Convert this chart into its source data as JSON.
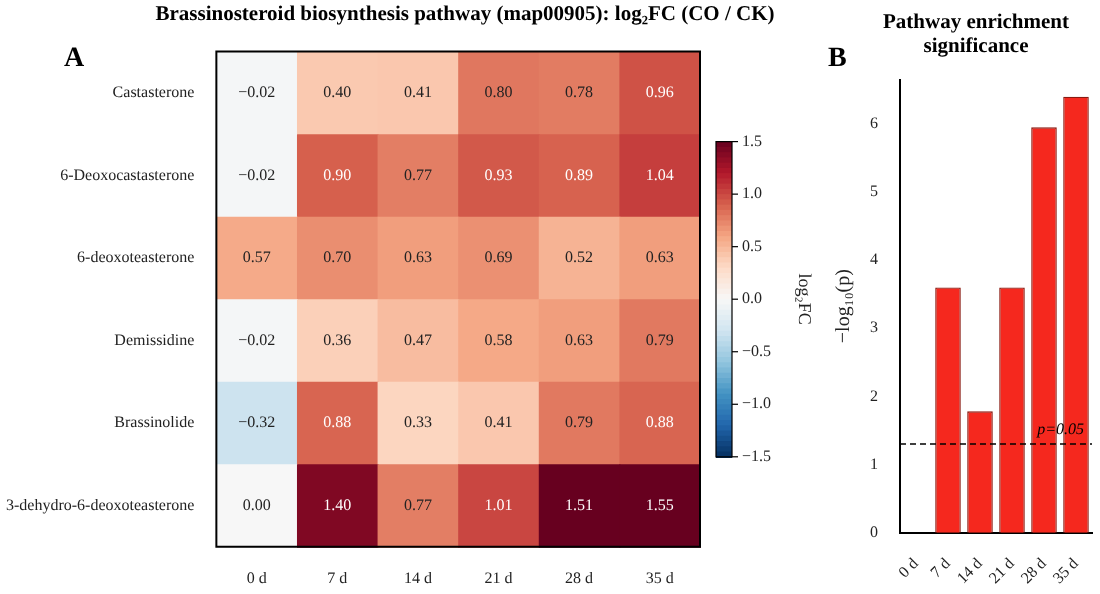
{
  "chart_data": [
    {
      "type": "heatmap",
      "title": "Brassinosteroid biosynthesis pathway (map00905): log₂FC (CO / CK)",
      "annotations": [
        "A"
      ],
      "clabel": "log₂FC",
      "categories": [
        "0 d",
        "7 d",
        "14 d",
        "21 d",
        "28 d",
        "35 d"
      ],
      "y_categories": [
        "Castasterone",
        "6-Deoxocastasterone",
        "6-deoxoteasterone",
        "Demissidine",
        "Brassinolide",
        "3-dehydro-6-deoxoteasterone"
      ],
      "cells": [
        [
          -0.02,
          0.4,
          0.41,
          0.8,
          0.78,
          0.96
        ],
        [
          -0.02,
          0.9,
          0.77,
          0.93,
          0.89,
          1.04
        ],
        [
          0.57,
          0.7,
          0.63,
          0.69,
          0.52,
          0.63
        ],
        [
          -0.02,
          0.36,
          0.47,
          0.58,
          0.63,
          0.79
        ],
        [
          -0.32,
          0.88,
          0.33,
          0.41,
          0.79,
          0.88
        ],
        [
          0.0,
          1.4,
          0.77,
          1.01,
          1.51,
          1.55
        ]
      ],
      "cell_labels": [
        [
          "−0.02",
          "0.40",
          "0.41",
          "0.80",
          "0.78",
          "0.96"
        ],
        [
          "−0.02",
          "0.90",
          "0.77",
          "0.93",
          "0.89",
          "1.04"
        ],
        [
          "0.57",
          "0.70",
          "0.63",
          "0.69",
          "0.52",
          "0.63"
        ],
        [
          "−0.02",
          "0.36",
          "0.47",
          "0.58",
          "0.63",
          "0.79"
        ],
        [
          "−0.32",
          "0.88",
          "0.33",
          "0.41",
          "0.79",
          "0.88"
        ],
        [
          "0.00",
          "1.40",
          "0.77",
          "1.01",
          "1.51",
          "1.55"
        ]
      ],
      "clim": [
        -1.5,
        1.5
      ],
      "cticks": [
        {
          "value": -1.5,
          "label": "−1.5"
        },
        {
          "value": -1.0,
          "label": "−1.0"
        },
        {
          "value": -0.5,
          "label": "−0.5"
        },
        {
          "value": 0,
          "label": "0.0"
        },
        {
          "value": 0.5,
          "label": "0.5"
        },
        {
          "value": 1.0,
          "label": "1.0"
        },
        {
          "value": 1.5,
          "label": "1.5"
        }
      ]
    },
    {
      "type": "bar",
      "title": "Pathway enrichment significance",
      "ylabel": "−log₁₀(p)",
      "annotations": [
        "B",
        {
          "text": "p=0.05",
          "x": "35 d",
          "y": 1.3
        }
      ],
      "categories": [
        "0 d",
        "7 d",
        "14 d",
        "21 d",
        "28 d",
        "35 d"
      ],
      "values": [
        0,
        3.6,
        1.78,
        3.6,
        5.95,
        6.4
      ],
      "color": "#f5281e",
      "ylim": [
        0,
        6.65
      ],
      "yticks": [
        0,
        1,
        2,
        3,
        4,
        5,
        6
      ],
      "grid": false,
      "ref_lines": [
        {
          "axis": "y",
          "value": 1.3,
          "line_style": "dashed",
          "color": "#000000"
        }
      ]
    }
  ]
}
